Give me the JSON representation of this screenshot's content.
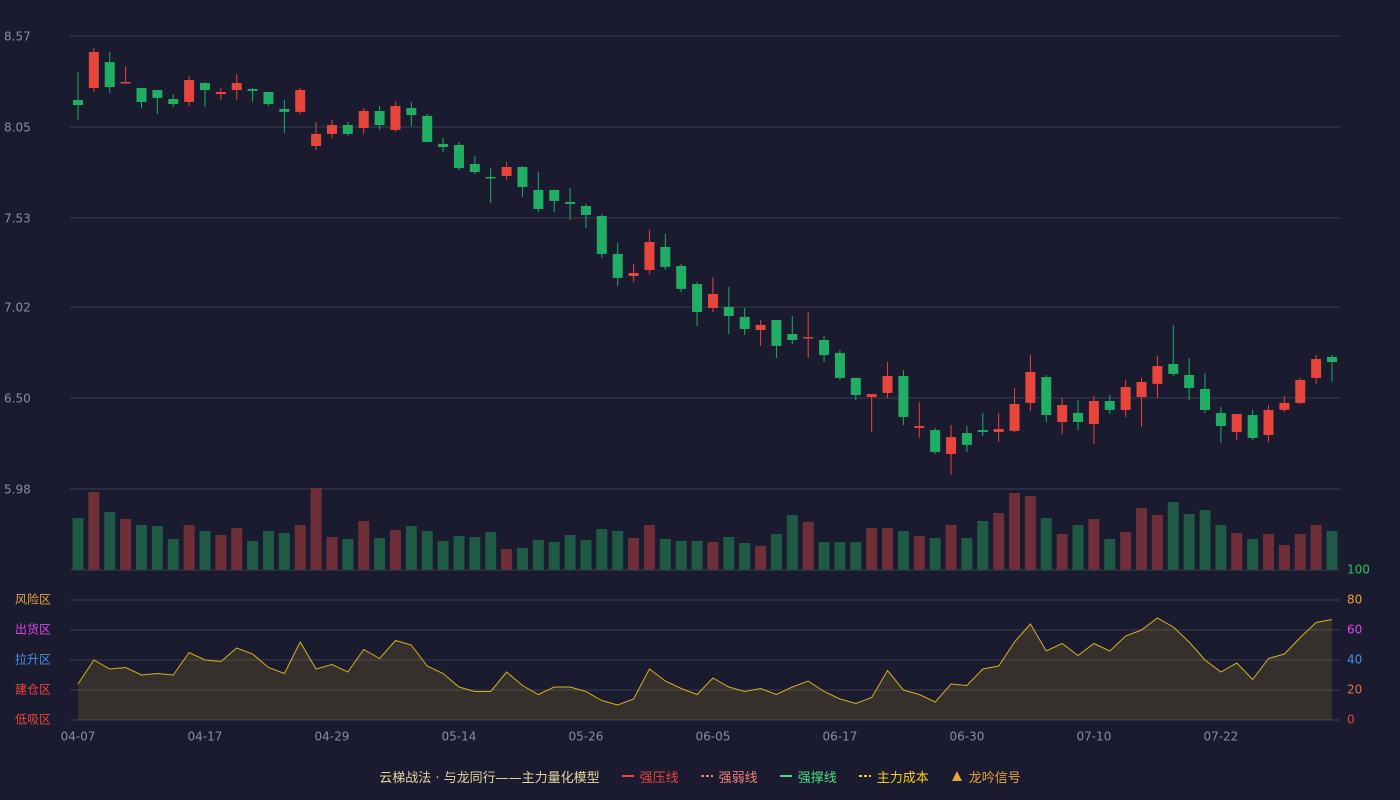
{
  "chart_data": [
    {
      "type": "candlestick",
      "categories": [
        "04-07",
        null,
        null,
        null,
        null,
        null,
        null,
        null,
        "04-17",
        null,
        null,
        null,
        null,
        null,
        null,
        null,
        "04-29",
        null,
        null,
        null,
        null,
        null,
        null,
        null,
        "05-14",
        null,
        null,
        null,
        null,
        null,
        null,
        null,
        "05-26",
        null,
        null,
        null,
        null,
        null,
        null,
        null,
        "06-05",
        null,
        null,
        null,
        null,
        null,
        null,
        null,
        "06-17",
        null,
        null,
        null,
        null,
        null,
        null,
        null,
        "06-30",
        null,
        null,
        null,
        null,
        null,
        null,
        null,
        "07-10",
        null,
        null,
        null,
        null,
        null,
        null,
        null,
        "07-22",
        null,
        null,
        null,
        null,
        null,
        null,
        null
      ],
      "open": [
        8.204,
        8.273,
        8.421,
        8.301,
        8.273,
        8.261,
        8.21,
        8.193,
        8.301,
        8.238,
        8.261,
        8.267,
        8.25,
        8.153,
        8.136,
        7.941,
        8.01,
        8.061,
        8.044,
        8.141,
        8.033,
        8.158,
        8.113,
        7.953,
        7.947,
        7.838,
        7.764,
        7.77,
        7.821,
        7.69,
        7.69,
        7.621,
        7.598,
        7.541,
        7.324,
        7.198,
        7.232,
        7.364,
        7.255,
        7.152,
        7.015,
        7.021,
        6.964,
        6.889,
        6.946,
        6.866,
        6.844,
        6.832,
        6.758,
        6.615,
        6.506,
        6.529,
        6.626,
        6.329,
        6.317,
        6.18,
        6.3,
        6.317,
        6.306,
        6.312,
        6.472,
        6.62,
        6.363,
        6.415,
        6.352,
        6.483,
        6.432,
        6.506,
        6.581,
        6.695,
        6.632,
        6.552,
        6.415,
        6.306,
        6.403,
        6.289,
        6.432,
        6.472,
        6.615,
        6.735
      ],
      "high": [
        8.364,
        8.501,
        8.479,
        8.399,
        8.273,
        8.261,
        8.238,
        8.341,
        8.307,
        8.273,
        8.353,
        8.273,
        8.25,
        8.204,
        8.273,
        8.078,
        8.09,
        8.078,
        8.158,
        8.17,
        8.193,
        8.193,
        8.124,
        7.987,
        7.964,
        7.884,
        7.815,
        7.85,
        7.827,
        7.792,
        7.69,
        7.701,
        7.61,
        7.552,
        7.387,
        7.267,
        7.461,
        7.438,
        7.267,
        7.164,
        7.192,
        7.135,
        7.015,
        6.946,
        6.946,
        6.969,
        6.992,
        6.855,
        6.775,
        6.615,
        6.523,
        6.706,
        6.66,
        6.477,
        6.329,
        6.346,
        6.34,
        6.415,
        6.415,
        6.558,
        6.746,
        6.632,
        6.5,
        6.489,
        6.512,
        6.517,
        6.603,
        6.615,
        6.741,
        6.918,
        6.729,
        6.643,
        6.449,
        6.409,
        6.432,
        6.46,
        6.512,
        6.615,
        6.746,
        6.746
      ],
      "low": [
        8.09,
        8.25,
        8.244,
        8.301,
        8.158,
        8.124,
        8.164,
        8.17,
        8.164,
        8.204,
        8.204,
        8.193,
        8.17,
        8.015,
        8.124,
        7.918,
        7.987,
        7.998,
        8.01,
        8.033,
        8.021,
        8.055,
        7.964,
        7.907,
        7.804,
        7.781,
        7.615,
        7.747,
        7.65,
        7.564,
        7.564,
        7.518,
        7.472,
        7.301,
        7.141,
        7.164,
        7.209,
        7.232,
        7.106,
        6.912,
        6.992,
        6.866,
        6.861,
        6.798,
        6.729,
        6.809,
        6.729,
        6.706,
        6.603,
        6.489,
        6.306,
        6.5,
        6.346,
        6.272,
        6.18,
        6.06,
        6.192,
        6.283,
        6.249,
        6.306,
        6.426,
        6.363,
        6.295,
        6.317,
        6.237,
        6.409,
        6.392,
        6.335,
        6.5,
        6.626,
        6.489,
        6.415,
        6.243,
        6.26,
        6.26,
        6.249,
        6.42,
        6.466,
        6.58,
        6.592
      ],
      "close": [
        8.175,
        8.479,
        8.278,
        8.307,
        8.193,
        8.216,
        8.181,
        8.318,
        8.261,
        8.25,
        8.301,
        8.256,
        8.181,
        8.136,
        8.261,
        8.01,
        8.061,
        8.01,
        8.141,
        8.061,
        8.17,
        8.118,
        7.964,
        7.935,
        7.815,
        7.792,
        7.758,
        7.821,
        7.707,
        7.581,
        7.627,
        7.61,
        7.547,
        7.324,
        7.187,
        7.215,
        7.392,
        7.25,
        7.124,
        6.992,
        7.095,
        6.969,
        6.895,
        6.918,
        6.798,
        6.832,
        6.849,
        6.746,
        6.615,
        6.517,
        6.523,
        6.626,
        6.392,
        6.34,
        6.192,
        6.277,
        6.232,
        6.306,
        6.323,
        6.466,
        6.649,
        6.403,
        6.46,
        6.363,
        6.483,
        6.432,
        6.563,
        6.592,
        6.683,
        6.638,
        6.558,
        6.432,
        6.34,
        6.409,
        6.272,
        6.432,
        6.472,
        6.603,
        6.723,
        6.706
      ],
      "ylim": [
        5.98,
        8.57
      ],
      "yticks": [
        8.57,
        8.05,
        7.53,
        7.02,
        {
          "value": 6.5,
          "label": "6.50"
        },
        5.98
      ],
      "up_color": "#e8453c",
      "down_color": "#1fae63",
      "grid": true
    },
    {
      "type": "bar",
      "values": [
        52,
        78,
        58,
        51,
        45,
        44,
        31,
        45,
        39,
        35,
        42,
        29,
        39,
        37,
        45,
        82,
        33,
        31,
        49,
        32,
        40,
        44,
        39,
        29,
        34,
        33,
        38,
        21,
        22,
        30,
        28,
        35,
        30,
        41,
        39,
        32,
        45,
        31,
        29,
        29,
        28,
        33,
        27,
        24,
        36,
        55,
        48,
        28,
        28,
        28,
        42,
        42,
        39,
        34,
        32,
        45,
        32,
        49,
        57,
        77,
        74,
        52,
        36,
        45,
        51,
        31,
        38,
        62,
        55,
        68,
        56,
        60,
        45,
        37,
        31,
        36,
        25,
        36,
        45,
        39
      ],
      "up_color": "#6e2f38",
      "down_color": "#1f5a46"
    },
    {
      "type": "line",
      "values": [
        24,
        40,
        34,
        35,
        30,
        31,
        30,
        45,
        40,
        39,
        48,
        44,
        35,
        31,
        52,
        34,
        37,
        32,
        47,
        41,
        53,
        50,
        36,
        31,
        22,
        19,
        19,
        32,
        23,
        17,
        22,
        22,
        19,
        13,
        10,
        14,
        34,
        26,
        21,
        17,
        28,
        22,
        19,
        21,
        17,
        22,
        26,
        19,
        14,
        11,
        15,
        33,
        20,
        17,
        12,
        24,
        23,
        34,
        36,
        52,
        64,
        46,
        51,
        43,
        51,
        46,
        56,
        60,
        68,
        62,
        52,
        40,
        32,
        38,
        27,
        41,
        44,
        55,
        65,
        67
      ],
      "color": "#d4b020",
      "ylim": [
        0,
        100
      ],
      "yticks": [
        0,
        20,
        40,
        60,
        80,
        100
      ],
      "ytick_colors": [
        "#e8453c",
        "#e8703c",
        "#4a90e2",
        "#d946ef",
        "#e8a33c",
        "#22c55e"
      ],
      "zones": [
        {
          "label": "风险区",
          "value": 80,
          "color": "#e8a33c"
        },
        {
          "label": "出货区",
          "value": 60,
          "color": "#d946ef"
        },
        {
          "label": "拉升区",
          "value": 40,
          "color": "#4a90e2"
        },
        {
          "label": "建仓区",
          "value": 20,
          "color": "#e8453c"
        },
        {
          "label": "低吸区",
          "value": 0,
          "color": "#e8453c"
        }
      ],
      "grid": true
    }
  ],
  "legend": {
    "title": "云梯战法 · 与龙同行——主力量化模型",
    "items": [
      {
        "name": "强压线",
        "color": "#e8453c",
        "style": "solid"
      },
      {
        "name": "强弱线",
        "color": "#f08080",
        "style": "dashed"
      },
      {
        "name": "强撑线",
        "color": "#4ade80",
        "style": "solid"
      },
      {
        "name": "主力成本",
        "color": "#facc15",
        "style": "dashed"
      },
      {
        "name": "龙吟信号",
        "color": "#e8a33c",
        "style": "triangle"
      }
    ]
  }
}
